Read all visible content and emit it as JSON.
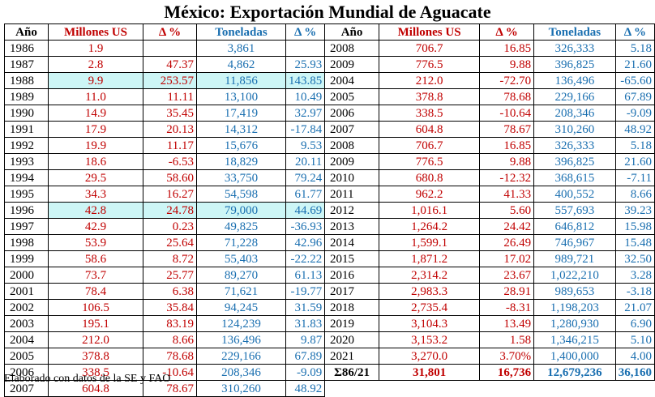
{
  "title": "México: Exportación Mundial de Aguacate",
  "headers": [
    "Año",
    "Millones US",
    "Δ %",
    "Toneladas",
    "Δ %"
  ],
  "colors": {
    "red": "#c00000",
    "blue": "#1a6fb0",
    "highlight": "#cdf6f6"
  },
  "left_rows": [
    {
      "year": "1986",
      "millions": "1.9",
      "delta_m": "",
      "tons": "3,861",
      "delta_t": "",
      "highlight": false
    },
    {
      "year": "1987",
      "millions": "2.8",
      "delta_m": "47.37",
      "tons": "4,862",
      "delta_t": "25.93",
      "highlight": false
    },
    {
      "year": "1988",
      "millions": "9.9",
      "delta_m": "253.57",
      "tons": "11,856",
      "delta_t": "143.85",
      "highlight": true
    },
    {
      "year": "1989",
      "millions": "11.0",
      "delta_m": "11.11",
      "tons": "13,100",
      "delta_t": "10.49",
      "highlight": false
    },
    {
      "year": "1990",
      "millions": "14.9",
      "delta_m": "35.45",
      "tons": "17,419",
      "delta_t": "32.97",
      "highlight": false
    },
    {
      "year": "1991",
      "millions": "17.9",
      "delta_m": "20.13",
      "tons": "14,312",
      "delta_t": "-17.84",
      "highlight": false
    },
    {
      "year": "1992",
      "millions": "19.9",
      "delta_m": "11.17",
      "tons": "15,676",
      "delta_t": "9.53",
      "highlight": false
    },
    {
      "year": "1993",
      "millions": "18.6",
      "delta_m": "-6.53",
      "tons": "18,829",
      "delta_t": "20.11",
      "highlight": false
    },
    {
      "year": "1994",
      "millions": "29.5",
      "delta_m": "58.60",
      "tons": "33,750",
      "delta_t": "79.24",
      "highlight": false
    },
    {
      "year": "1995",
      "millions": "34.3",
      "delta_m": "16.27",
      "tons": "54,598",
      "delta_t": "61.77",
      "highlight": false
    },
    {
      "year": "1996",
      "millions": "42.8",
      "delta_m": "24.78",
      "tons": "79,000",
      "delta_t": "44.69",
      "highlight": true
    },
    {
      "year": "1997",
      "millions": "42.9",
      "delta_m": "0.23",
      "tons": "49,825",
      "delta_t": "-36.93",
      "highlight": false
    },
    {
      "year": "1998",
      "millions": "53.9",
      "delta_m": "25.64",
      "tons": "71,228",
      "delta_t": "42.96",
      "highlight": false
    },
    {
      "year": "1999",
      "millions": "58.6",
      "delta_m": "8.72",
      "tons": "55,403",
      "delta_t": "-22.22",
      "highlight": false
    },
    {
      "year": "2000",
      "millions": "73.7",
      "delta_m": "25.77",
      "tons": "89,270",
      "delta_t": "61.13",
      "highlight": false
    },
    {
      "year": "2001",
      "millions": "78.4",
      "delta_m": "6.38",
      "tons": "71,621",
      "delta_t": "-19.77",
      "highlight": false
    },
    {
      "year": "2002",
      "millions": "106.5",
      "delta_m": "35.84",
      "tons": "94,245",
      "delta_t": "31.59",
      "highlight": false
    },
    {
      "year": "2003",
      "millions": "195.1",
      "delta_m": "83.19",
      "tons": "124,239",
      "delta_t": "31.83",
      "highlight": false
    },
    {
      "year": "2004",
      "millions": "212.0",
      "delta_m": "8.66",
      "tons": "136,496",
      "delta_t": "9.87",
      "highlight": false
    },
    {
      "year": "2005",
      "millions": "378.8",
      "delta_m": "78.68",
      "tons": "229,166",
      "delta_t": "67.89",
      "highlight": false
    },
    {
      "year": "2006",
      "millions": "338.5",
      "delta_m": "-10.64",
      "tons": "208,346",
      "delta_t": "-9.09",
      "highlight": false
    },
    {
      "year": "2007",
      "millions": "604.8",
      "delta_m": "78.67",
      "tons": "310,260",
      "delta_t": "48.92",
      "highlight": false
    }
  ],
  "right_rows": [
    {
      "year": "2008",
      "millions": "706.7",
      "delta_m": "16.85",
      "tons": "326,333",
      "delta_t": "5.18"
    },
    {
      "year": "2009",
      "millions": "776.5",
      "delta_m": "9.88",
      "tons": "396,825",
      "delta_t": "21.60"
    },
    {
      "year": "2004",
      "millions": "212.0",
      "delta_m": "-72.70",
      "tons": "136,496",
      "delta_t": "-65.60"
    },
    {
      "year": "2005",
      "millions": "378.8",
      "delta_m": "78.68",
      "tons": "229,166",
      "delta_t": "67.89"
    },
    {
      "year": "2006",
      "millions": "338.5",
      "delta_m": "-10.64",
      "tons": "208,346",
      "delta_t": "-9.09"
    },
    {
      "year": "2007",
      "millions": "604.8",
      "delta_m": "78.67",
      "tons": "310,260",
      "delta_t": "48.92"
    },
    {
      "year": "2008",
      "millions": "706.7",
      "delta_m": "16.85",
      "tons": "326,333",
      "delta_t": "5.18"
    },
    {
      "year": "2009",
      "millions": "776.5",
      "delta_m": "9.88",
      "tons": "396,825",
      "delta_t": "21.60"
    },
    {
      "year": "2010",
      "millions": "680.8",
      "delta_m": "-12.32",
      "tons": "368,615",
      "delta_t": "-7.11"
    },
    {
      "year": "2011",
      "millions": "962.2",
      "delta_m": "41.33",
      "tons": "400,552",
      "delta_t": "8.66"
    },
    {
      "year": "2012",
      "millions": "1,016.1",
      "delta_m": "5.60",
      "tons": "557,693",
      "delta_t": "39.23"
    },
    {
      "year": "2013",
      "millions": "1,264.2",
      "delta_m": "24.42",
      "tons": "646,812",
      "delta_t": "15.98"
    },
    {
      "year": "2014",
      "millions": "1,599.1",
      "delta_m": "26.49",
      "tons": "746,967",
      "delta_t": "15.48"
    },
    {
      "year": "2015",
      "millions": "1,871.2",
      "delta_m": "17.02",
      "tons": "989,721",
      "delta_t": "32.50"
    },
    {
      "year": "2016",
      "millions": "2,314.2",
      "delta_m": "23.67",
      "tons": "1,022,210",
      "delta_t": "3.28"
    },
    {
      "year": "2017",
      "millions": "2,983.3",
      "delta_m": "28.91",
      "tons": "989,653",
      "delta_t": "-3.18"
    },
    {
      "year": "2018",
      "millions": "2,735.4",
      "delta_m": "-8.31",
      "tons": "1,198,203",
      "delta_t": "21.07"
    },
    {
      "year": "2019",
      "millions": "3,104.3",
      "delta_m": "13.49",
      "tons": "1,280,930",
      "delta_t": "6.90"
    },
    {
      "year": "2020",
      "millions": "3,153.2",
      "delta_m": "1.58",
      "tons": "1,346,215",
      "delta_t": "5.10"
    },
    {
      "year": "2021",
      "millions": "3,270.0",
      "delta_m": "3.70%",
      "tons": "1,400,000",
      "delta_t": "4.00"
    }
  ],
  "total_row": {
    "year": "Σ86/21",
    "millions": "31,801",
    "delta_m": "16,736",
    "tons": "12,679,236",
    "delta_t": "36,160"
  },
  "footnote": "Elaborado con datos de la SE y FAO"
}
